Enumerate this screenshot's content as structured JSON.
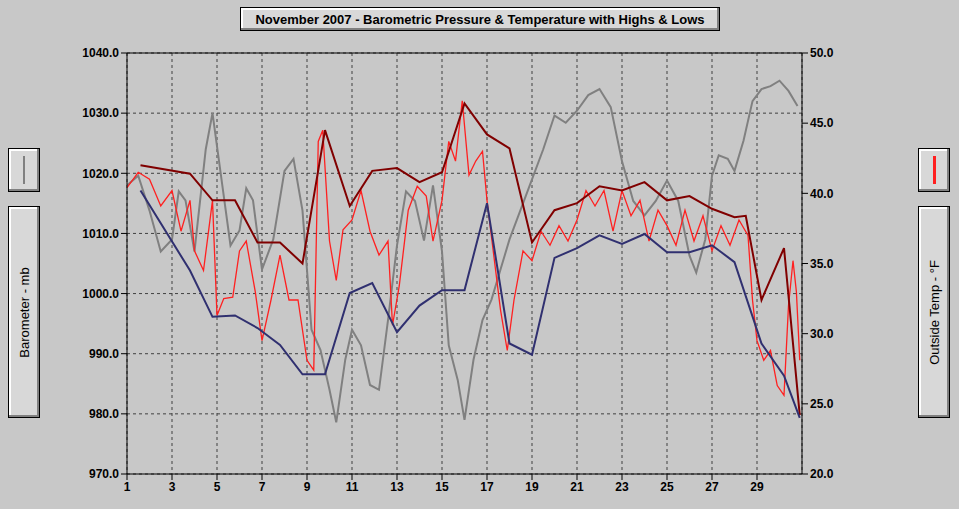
{
  "chart_data": {
    "type": "line",
    "title": "November 2007 - Barometric Pressure & Temperature with Highs & Lows",
    "y_label": "Barometer - mb",
    "y2_label": "Outside Temp - °F",
    "xlim": [
      1,
      31
    ],
    "xticks": [
      1,
      3,
      5,
      7,
      9,
      11,
      13,
      15,
      17,
      19,
      21,
      23,
      25,
      27,
      29
    ],
    "ylim": [
      970,
      1040
    ],
    "yticks": [
      {
        "value": 970,
        "label": "970.0"
      },
      {
        "value": 980,
        "label": "980.0"
      },
      {
        "value": 990,
        "label": "990.0"
      },
      {
        "value": 1000,
        "label": "1000.0"
      },
      {
        "value": 1010,
        "label": "1010.0"
      },
      {
        "value": 1020,
        "label": "1020.0"
      },
      {
        "value": 1030,
        "label": "1030.0"
      },
      {
        "value": 1040,
        "label": "1040.0"
      }
    ],
    "y2lim": [
      20,
      50
    ],
    "y2ticks": [
      {
        "value": 20,
        "label": "20.0"
      },
      {
        "value": 25,
        "label": "25.0"
      },
      {
        "value": 30,
        "label": "30.0"
      },
      {
        "value": 35,
        "label": "35.0"
      },
      {
        "value": 40,
        "label": "40.0"
      },
      {
        "value": 45,
        "label": "45.0"
      },
      {
        "value": 50,
        "label": "50.0"
      }
    ],
    "grid": true,
    "series": [
      {
        "color": "#808080",
        "axis": "y",
        "x": [
          1,
          1.5,
          2,
          2.5,
          3,
          3.3,
          3.6,
          4,
          4.5,
          4.8,
          5.2,
          5.6,
          6,
          6.3,
          6.6,
          7,
          7.5,
          8,
          8.4,
          8.8,
          9.2,
          9.6,
          10,
          10.3,
          10.7,
          11,
          11.4,
          11.8,
          12.2,
          12.6,
          13,
          13.4,
          13.8,
          14.2,
          14.6,
          15,
          15.3,
          15.7,
          16,
          16.4,
          16.8,
          17.2,
          17.6,
          18,
          18.5,
          19,
          19.5,
          20,
          20.5,
          21,
          21.5,
          22,
          22.5,
          23,
          23.5,
          24,
          24.5,
          25,
          25.5,
          26,
          26.3,
          26.7,
          27,
          27.3,
          27.7,
          28,
          28.4,
          28.8,
          29.2,
          29.6,
          30,
          30.4,
          30.8
        ],
        "values": [
          1018,
          1019.6,
          1013.8,
          1007,
          1009,
          1017,
          1015.5,
          1007,
          1024,
          1030,
          1019,
          1008,
          1010.5,
          1017.5,
          1015.5,
          1004,
          1009,
          1020.4,
          1022.4,
          1013.8,
          994,
          990.6,
          984,
          978.6,
          989,
          994,
          991.4,
          984.8,
          984,
          995.6,
          1008,
          1017,
          1015.4,
          1008.8,
          1018,
          1007,
          991.4,
          985.6,
          979,
          989,
          995.6,
          999,
          1004,
          1009,
          1014,
          1019,
          1024,
          1029.6,
          1028.4,
          1030.4,
          1033,
          1034,
          1031,
          1022,
          1015.4,
          1013,
          1015.4,
          1018.8,
          1015.4,
          1006.3,
          1003.5,
          1009,
          1019.6,
          1023,
          1022.4,
          1020.4,
          1025.4,
          1032,
          1034,
          1034.5,
          1035.4,
          1033.7,
          1031.2
        ]
      },
      {
        "color": "#ff2020",
        "axis": "y2",
        "x": [
          1,
          1.5,
          2,
          2.5,
          3,
          3.4,
          3.8,
          4,
          4.4,
          4.8,
          5,
          5.3,
          5.7,
          6,
          6.3,
          6.7,
          7,
          7.4,
          7.8,
          8.2,
          8.6,
          9,
          9.3,
          9.5,
          9.7,
          10,
          10.3,
          10.6,
          11,
          11.4,
          11.8,
          12.2,
          12.6,
          12.8,
          13.1,
          13.5,
          13.9,
          14.3,
          14.6,
          15,
          15.3,
          15.6,
          15.9,
          16.2,
          16.5,
          16.8,
          17,
          17.3,
          17.6,
          17.9,
          18.2,
          18.6,
          19,
          19.4,
          19.8,
          20.2,
          20.6,
          21,
          21.4,
          21.8,
          22.2,
          22.6,
          23,
          23.4,
          23.8,
          24.2,
          24.6,
          25,
          25.4,
          25.8,
          26.2,
          26.6,
          27,
          27.4,
          27.8,
          28.2,
          28.6,
          28.8,
          29,
          29.3,
          29.6,
          29.9,
          30.2,
          30.4,
          30.6,
          30.75,
          30.9
        ],
        "values": [
          40.4,
          41.5,
          41,
          39.1,
          40.2,
          37.3,
          39.5,
          35.9,
          34.5,
          39.5,
          31.3,
          32.5,
          32.6,
          35.9,
          36.6,
          33,
          29.5,
          32.4,
          35.6,
          32.4,
          32.4,
          28.1,
          27.4,
          43.7,
          44.5,
          36.6,
          33.8,
          37.4,
          38.1,
          40.2,
          37.3,
          35.6,
          36.6,
          30.6,
          33.4,
          38.8,
          40.5,
          39.8,
          36.6,
          39.5,
          43.7,
          42.3,
          46.6,
          41.3,
          42.3,
          43,
          39.5,
          35.6,
          31.7,
          28.8,
          32.4,
          35.9,
          35.2,
          37.3,
          36.3,
          37.7,
          36.6,
          38.1,
          40.2,
          39.1,
          40.2,
          37.3,
          40.2,
          38.4,
          39.5,
          36.6,
          38.8,
          37.7,
          36.3,
          38.8,
          36.6,
          38.4,
          35.9,
          37.7,
          36.3,
          38.1,
          37,
          32.4,
          29.5,
          28.1,
          28.8,
          26.3,
          25.6,
          32,
          35.2,
          33,
          28.1
        ]
      },
      {
        "color": "#800000",
        "axis": "y2",
        "x": [
          1.6,
          3.8,
          4.8,
          5.8,
          6.8,
          7.8,
          8.8,
          9.8,
          10.9,
          11.9,
          13,
          14,
          15,
          16,
          17,
          18,
          19,
          20,
          21,
          22,
          23,
          24,
          25,
          26,
          27,
          28,
          28.5,
          29.2,
          30.2,
          30.9
        ],
        "values": [
          42,
          41.4,
          39.5,
          39.5,
          36.5,
          36.5,
          35,
          44.5,
          39.1,
          41.6,
          41.8,
          40.8,
          41.5,
          46.4,
          44.2,
          43.2,
          36.5,
          38.8,
          39.3,
          40.5,
          40.2,
          40.8,
          39.5,
          39.8,
          38.9,
          38.3,
          38.4,
          32.4,
          36.1,
          24.2
        ]
      },
      {
        "color": "#303070",
        "axis": "y2",
        "x": [
          1.6,
          3.8,
          4.8,
          5.8,
          6.8,
          7.8,
          8.8,
          9.8,
          10.9,
          11.9,
          13,
          14,
          15,
          16,
          17,
          18,
          19,
          20,
          21,
          22,
          23,
          24,
          25,
          26,
          27,
          28,
          29.2,
          30.2,
          30.9
        ],
        "values": [
          40.2,
          34.5,
          31.2,
          31.3,
          30.4,
          29.2,
          27.1,
          27.1,
          32.9,
          33.6,
          30.1,
          32,
          33.1,
          33.1,
          39.3,
          29.3,
          28.5,
          35.4,
          36.1,
          37,
          36.4,
          37.1,
          35.8,
          35.8,
          36.3,
          35.1,
          29.3,
          27,
          24
        ]
      }
    ]
  }
}
